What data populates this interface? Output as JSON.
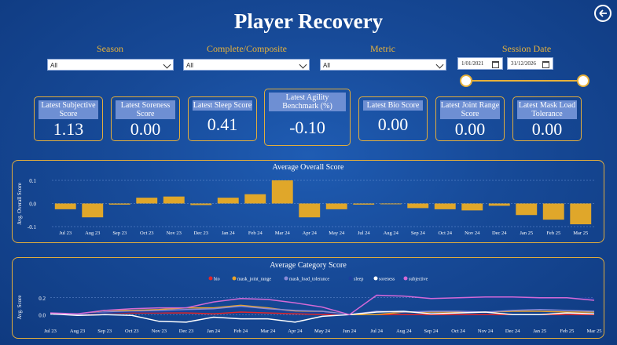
{
  "header": {
    "title": "Player Recovery",
    "back_icon": "back-arrow-icon"
  },
  "filters": {
    "season": {
      "label": "Season",
      "value": "All"
    },
    "complete": {
      "label": "Complete/Composite",
      "value": "All"
    },
    "metric": {
      "label": "Metric",
      "value": "All"
    },
    "session_date": {
      "label": "Session Date",
      "start": "1/01/2021",
      "end": "31/12/2026"
    }
  },
  "cards": [
    {
      "label": "Latest Subjective Score",
      "value": "1.13"
    },
    {
      "label": "Latest Soreness Score",
      "value": "0.00"
    },
    {
      "label": "Latest Sleep Score",
      "value": "0.41"
    },
    {
      "label": "Latest Agility Benchmark (%)",
      "value": "-0.10"
    },
    {
      "label": "Latest Bio Score",
      "value": "0.00"
    },
    {
      "label": "Latest Joint Range Score",
      "value": "0.00"
    },
    {
      "label": "Latest Mask Load Tolerance",
      "value": "0.00"
    }
  ],
  "colors": {
    "accent": "#e2ad3c",
    "bar": "#e0a72a"
  },
  "chart_data": [
    {
      "type": "bar",
      "title": "Average Overall Score",
      "ylabel": "Avg. Overall Score",
      "categories": [
        "Jul 23",
        "Aug 23",
        "Sep 23",
        "Oct 23",
        "Nov 23",
        "Dec 23",
        "Jan 24",
        "Feb 24",
        "Mar 24",
        "Apr 24",
        "May 24",
        "Jul 24",
        "Aug 24",
        "Sep 24",
        "Oct 24",
        "Nov 24",
        "Dec 24",
        "Jan 25",
        "Feb 25",
        "Mar 25"
      ],
      "values": [
        -0.025,
        -0.06,
        -0.005,
        0.025,
        0.03,
        -0.007,
        0.025,
        0.04,
        0.1,
        -0.06,
        -0.025,
        -0.005,
        -0.003,
        -0.02,
        -0.025,
        -0.03,
        -0.01,
        -0.05,
        -0.07,
        -0.09
      ],
      "yticks": [
        "0.1",
        "0.0",
        "-0.1"
      ],
      "ylim": [
        -0.1,
        0.1
      ],
      "grid": true
    },
    {
      "type": "line",
      "title": "Average Category Score",
      "ylabel": "Avg. Score",
      "categories": [
        "Jul 23",
        "Aug 23",
        "Sep 23",
        "Oct 23",
        "Nov 23",
        "Dec 23",
        "Jan 24",
        "Feb 24",
        "Mar 24",
        "Apr 24",
        "May 24",
        "Jun 24",
        "Jul 24",
        "Aug 24",
        "Sep 24",
        "Oct 24",
        "Nov 24",
        "Dec 24",
        "Jan 25",
        "Feb 25",
        "Mar 25"
      ],
      "yticks": [
        "0.2",
        "0.0"
      ],
      "ylim": [
        -0.1,
        0.3
      ],
      "legend_position": "top",
      "series": [
        {
          "name": "bio",
          "color": "#e0262b",
          "values": [
            0.02,
            0.0,
            0.02,
            0.02,
            0.02,
            0.02,
            0.01,
            0.03,
            0.02,
            0.01,
            0.0,
            0.0,
            0.0,
            0.0,
            0.0,
            0.0,
            0.0,
            0.0,
            0.0,
            0.0,
            0.0
          ]
        },
        {
          "name": "mask_joint_range",
          "color": "#e8a32a",
          "values": [
            0.01,
            0.0,
            0.05,
            0.05,
            0.06,
            0.08,
            0.08,
            0.11,
            0.08,
            0.04,
            0.04,
            0.0,
            0.0,
            0.03,
            0.03,
            0.03,
            0.03,
            0.04,
            0.04,
            0.03,
            0.03
          ]
        },
        {
          "name": "mask_load_tolerance",
          "color": "#8a8ad8",
          "values": [
            0.01,
            0.0,
            0.03,
            0.04,
            0.05,
            0.06,
            0.07,
            0.1,
            0.07,
            0.05,
            0.04,
            0.0,
            0.04,
            0.03,
            0.04,
            0.04,
            0.03,
            0.05,
            0.06,
            0.05,
            0.04
          ]
        },
        {
          "name": "sleep",
          "color": "#1c3f9e",
          "values": [
            0.02,
            0.01,
            0.02,
            0.03,
            0.03,
            0.04,
            0.05,
            0.07,
            0.05,
            0.03,
            0.02,
            0.0,
            0.24,
            0.22,
            0.2,
            0.19,
            0.2,
            0.2,
            0.19,
            0.2,
            0.19
          ]
        },
        {
          "name": "soreness",
          "color": "#ffffff",
          "values": [
            0.01,
            -0.01,
            0.0,
            -0.01,
            -0.08,
            -0.09,
            -0.03,
            -0.05,
            -0.05,
            -0.09,
            -0.02,
            0.0,
            0.03,
            0.04,
            0.01,
            0.02,
            0.03,
            0.0,
            0.0,
            0.02,
            0.01
          ]
        },
        {
          "name": "subjective",
          "color": "#d46ad6",
          "values": [
            0.02,
            0.01,
            0.05,
            0.07,
            0.08,
            0.08,
            0.15,
            0.19,
            0.18,
            0.14,
            0.09,
            0.0,
            0.23,
            0.22,
            0.19,
            0.2,
            0.21,
            0.21,
            0.2,
            0.2,
            0.17
          ]
        }
      ]
    }
  ]
}
